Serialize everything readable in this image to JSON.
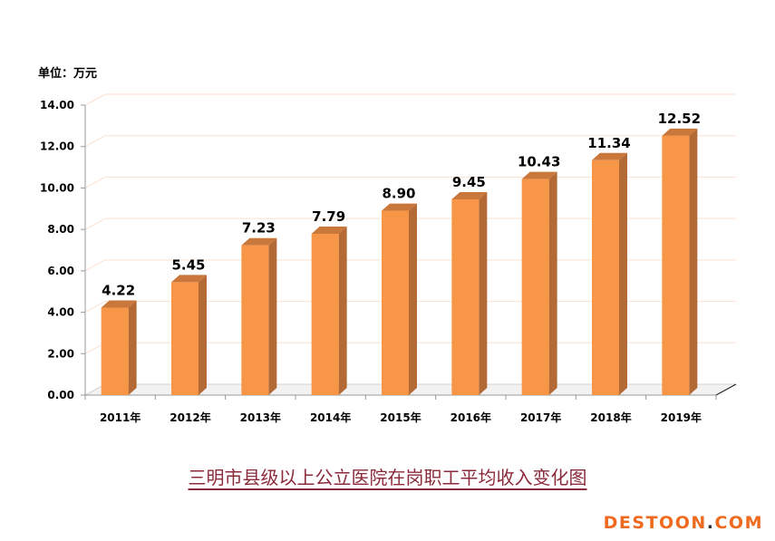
{
  "unit_label": "单位：万元",
  "caption": "三明市县级以上公立医院在岗职工平均收入变化图",
  "watermark": {
    "left": "DESTOON",
    "dot": ".",
    "right": "COM"
  },
  "colors": {
    "bar_front": "#f79646",
    "bar_side": "#b46a34",
    "bar_top": "#c9773a",
    "grid": "#fbe0d0",
    "caption": "#8b2a3a"
  },
  "chart_data": {
    "type": "bar",
    "categories": [
      "2011年",
      "2012年",
      "2013年",
      "2014年",
      "2015年",
      "2016年",
      "2017年",
      "2018年",
      "2019年"
    ],
    "values": [
      4.22,
      5.45,
      7.23,
      7.79,
      8.9,
      9.45,
      10.43,
      11.34,
      12.52
    ],
    "value_labels": [
      "4.22",
      "5.45",
      "7.23",
      "7.79",
      "8.90",
      "9.45",
      "10.43",
      "11.34",
      "12.52"
    ],
    "y_ticks": [
      "0.00",
      "2.00",
      "4.00",
      "6.00",
      "8.00",
      "10.00",
      "12.00",
      "14.00"
    ],
    "ylim": [
      0,
      14
    ],
    "grid": true
  }
}
